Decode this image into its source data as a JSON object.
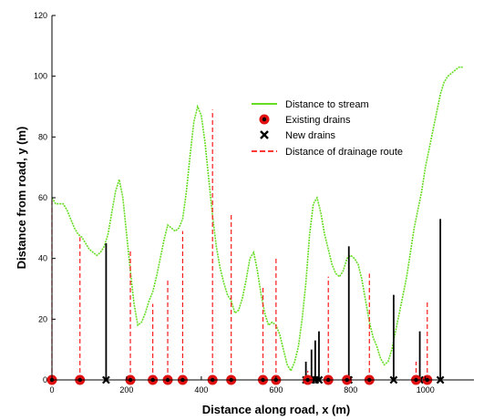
{
  "chart_data": {
    "type": "line",
    "xlabel": "Distance along road, x (m)",
    "ylabel": "Distance from road, y (m)",
    "xlim": [
      0,
      1130
    ],
    "ylim": [
      0,
      120
    ],
    "x_ticks": [
      "0",
      "200",
      "400",
      "600",
      "800",
      "1000"
    ],
    "y_ticks": [
      "0",
      "20",
      "40",
      "60",
      "80",
      "100",
      "120"
    ],
    "x_tick_values": [
      0,
      200,
      400,
      600,
      800,
      1000
    ],
    "y_tick_values": [
      0,
      20,
      40,
      60,
      80,
      100,
      120
    ],
    "grid": false,
    "legend": {
      "placement": "top-right",
      "entries": [
        "Distance to stream",
        "Existing drains",
        "New drains",
        "Distance of drainage route"
      ]
    },
    "colors": {
      "stream": "#66dd22",
      "existing": "#e01010",
      "route": "#ff1a1a",
      "new": "#000000"
    },
    "series": [
      {
        "name": "Distance to stream",
        "x": [
          0,
          5,
          10,
          20,
          30,
          40,
          50,
          60,
          70,
          80,
          90,
          100,
          110,
          120,
          130,
          140,
          150,
          160,
          170,
          180,
          190,
          200,
          210,
          220,
          230,
          240,
          250,
          260,
          270,
          280,
          290,
          300,
          310,
          320,
          330,
          340,
          350,
          360,
          370,
          380,
          390,
          400,
          410,
          420,
          430,
          440,
          450,
          460,
          470,
          480,
          490,
          500,
          510,
          520,
          530,
          540,
          550,
          560,
          570,
          580,
          590,
          600,
          610,
          620,
          630,
          640,
          650,
          660,
          670,
          680,
          690,
          700,
          710,
          720,
          730,
          740,
          750,
          760,
          770,
          780,
          790,
          800,
          810,
          820,
          830,
          840,
          850,
          860,
          870,
          880,
          890,
          900,
          910,
          920,
          930,
          940,
          950,
          960,
          970,
          980,
          990,
          1000,
          1010,
          1020,
          1030,
          1040,
          1050,
          1060,
          1070,
          1080,
          1090,
          1100
        ],
        "y": [
          60,
          59,
          58,
          58,
          58,
          56,
          53,
          50,
          48,
          47,
          45,
          43,
          42,
          41,
          42,
          44,
          48,
          55,
          62,
          66,
          60,
          48,
          36,
          25,
          18,
          19,
          22,
          26,
          29,
          34,
          40,
          46,
          51,
          50,
          49,
          50,
          53,
          62,
          74,
          85,
          90,
          87,
          78,
          66,
          54,
          44,
          37,
          32,
          28,
          26,
          22,
          23,
          27,
          33,
          40,
          42,
          36,
          28,
          22,
          18,
          19,
          18,
          15,
          10,
          5,
          3,
          6,
          11,
          20,
          32,
          48,
          58,
          60,
          55,
          48,
          43,
          38,
          35,
          34,
          36,
          40,
          41,
          40,
          38,
          33,
          26,
          19,
          14,
          11,
          7,
          5,
          6,
          10,
          16,
          22,
          28,
          34,
          42,
          50,
          56,
          62,
          70,
          76,
          82,
          88,
          94,
          98,
          100,
          101,
          102,
          103,
          103
        ]
      }
    ],
    "existing_drains": [
      {
        "x": 0,
        "route": 60
      },
      {
        "x": 75,
        "route": 47
      },
      {
        "x": 210,
        "route": 43
      },
      {
        "x": 270,
        "route": 25
      },
      {
        "x": 310,
        "route": 33
      },
      {
        "x": 350,
        "route": 49
      },
      {
        "x": 430,
        "route": 89
      },
      {
        "x": 480,
        "route": 55
      },
      {
        "x": 565,
        "route": 31
      },
      {
        "x": 600,
        "route": 40
      },
      {
        "x": 685,
        "route": 3
      },
      {
        "x": 740,
        "route": 34
      },
      {
        "x": 790,
        "route": 0
      },
      {
        "x": 850,
        "route": 35
      },
      {
        "x": 975,
        "route": 6
      },
      {
        "x": 1005,
        "route": 26
      }
    ],
    "new_drains": [
      {
        "x": 145,
        "height": 45
      },
      {
        "x": 680,
        "height": 6
      },
      {
        "x": 695,
        "height": 10
      },
      {
        "x": 705,
        "height": 13
      },
      {
        "x": 715,
        "height": 16
      },
      {
        "x": 795,
        "height": 44
      },
      {
        "x": 915,
        "height": 28
      },
      {
        "x": 985,
        "height": 16
      },
      {
        "x": 1040,
        "height": 53
      }
    ]
  }
}
